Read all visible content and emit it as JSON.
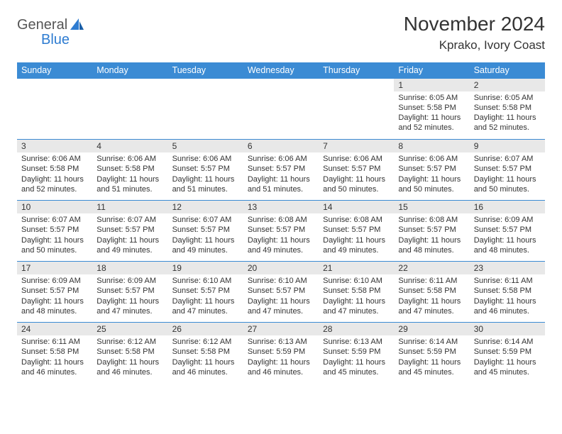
{
  "logo": {
    "line1": "General",
    "line2": "Blue"
  },
  "title": "November 2024",
  "location": "Kprako, Ivory Coast",
  "colors": {
    "header_bg": "#3b8bd4",
    "header_text": "#ffffff",
    "daynum_bg": "#e8e8e8",
    "border": "#3b8bd4",
    "logo_blue": "#2e7cd1",
    "text": "#333333"
  },
  "weekdays": [
    "Sunday",
    "Monday",
    "Tuesday",
    "Wednesday",
    "Thursday",
    "Friday",
    "Saturday"
  ],
  "weeks": [
    [
      {
        "n": "",
        "text": ""
      },
      {
        "n": "",
        "text": ""
      },
      {
        "n": "",
        "text": ""
      },
      {
        "n": "",
        "text": ""
      },
      {
        "n": "",
        "text": ""
      },
      {
        "n": "1",
        "text": "Sunrise: 6:05 AM\nSunset: 5:58 PM\nDaylight: 11 hours and 52 minutes."
      },
      {
        "n": "2",
        "text": "Sunrise: 6:05 AM\nSunset: 5:58 PM\nDaylight: 11 hours and 52 minutes."
      }
    ],
    [
      {
        "n": "3",
        "text": "Sunrise: 6:06 AM\nSunset: 5:58 PM\nDaylight: 11 hours and 52 minutes."
      },
      {
        "n": "4",
        "text": "Sunrise: 6:06 AM\nSunset: 5:58 PM\nDaylight: 11 hours and 51 minutes."
      },
      {
        "n": "5",
        "text": "Sunrise: 6:06 AM\nSunset: 5:57 PM\nDaylight: 11 hours and 51 minutes."
      },
      {
        "n": "6",
        "text": "Sunrise: 6:06 AM\nSunset: 5:57 PM\nDaylight: 11 hours and 51 minutes."
      },
      {
        "n": "7",
        "text": "Sunrise: 6:06 AM\nSunset: 5:57 PM\nDaylight: 11 hours and 50 minutes."
      },
      {
        "n": "8",
        "text": "Sunrise: 6:06 AM\nSunset: 5:57 PM\nDaylight: 11 hours and 50 minutes."
      },
      {
        "n": "9",
        "text": "Sunrise: 6:07 AM\nSunset: 5:57 PM\nDaylight: 11 hours and 50 minutes."
      }
    ],
    [
      {
        "n": "10",
        "text": "Sunrise: 6:07 AM\nSunset: 5:57 PM\nDaylight: 11 hours and 50 minutes."
      },
      {
        "n": "11",
        "text": "Sunrise: 6:07 AM\nSunset: 5:57 PM\nDaylight: 11 hours and 49 minutes."
      },
      {
        "n": "12",
        "text": "Sunrise: 6:07 AM\nSunset: 5:57 PM\nDaylight: 11 hours and 49 minutes."
      },
      {
        "n": "13",
        "text": "Sunrise: 6:08 AM\nSunset: 5:57 PM\nDaylight: 11 hours and 49 minutes."
      },
      {
        "n": "14",
        "text": "Sunrise: 6:08 AM\nSunset: 5:57 PM\nDaylight: 11 hours and 49 minutes."
      },
      {
        "n": "15",
        "text": "Sunrise: 6:08 AM\nSunset: 5:57 PM\nDaylight: 11 hours and 48 minutes."
      },
      {
        "n": "16",
        "text": "Sunrise: 6:09 AM\nSunset: 5:57 PM\nDaylight: 11 hours and 48 minutes."
      }
    ],
    [
      {
        "n": "17",
        "text": "Sunrise: 6:09 AM\nSunset: 5:57 PM\nDaylight: 11 hours and 48 minutes."
      },
      {
        "n": "18",
        "text": "Sunrise: 6:09 AM\nSunset: 5:57 PM\nDaylight: 11 hours and 47 minutes."
      },
      {
        "n": "19",
        "text": "Sunrise: 6:10 AM\nSunset: 5:57 PM\nDaylight: 11 hours and 47 minutes."
      },
      {
        "n": "20",
        "text": "Sunrise: 6:10 AM\nSunset: 5:57 PM\nDaylight: 11 hours and 47 minutes."
      },
      {
        "n": "21",
        "text": "Sunrise: 6:10 AM\nSunset: 5:58 PM\nDaylight: 11 hours and 47 minutes."
      },
      {
        "n": "22",
        "text": "Sunrise: 6:11 AM\nSunset: 5:58 PM\nDaylight: 11 hours and 47 minutes."
      },
      {
        "n": "23",
        "text": "Sunrise: 6:11 AM\nSunset: 5:58 PM\nDaylight: 11 hours and 46 minutes."
      }
    ],
    [
      {
        "n": "24",
        "text": "Sunrise: 6:11 AM\nSunset: 5:58 PM\nDaylight: 11 hours and 46 minutes."
      },
      {
        "n": "25",
        "text": "Sunrise: 6:12 AM\nSunset: 5:58 PM\nDaylight: 11 hours and 46 minutes."
      },
      {
        "n": "26",
        "text": "Sunrise: 6:12 AM\nSunset: 5:58 PM\nDaylight: 11 hours and 46 minutes."
      },
      {
        "n": "27",
        "text": "Sunrise: 6:13 AM\nSunset: 5:59 PM\nDaylight: 11 hours and 46 minutes."
      },
      {
        "n": "28",
        "text": "Sunrise: 6:13 AM\nSunset: 5:59 PM\nDaylight: 11 hours and 45 minutes."
      },
      {
        "n": "29",
        "text": "Sunrise: 6:14 AM\nSunset: 5:59 PM\nDaylight: 11 hours and 45 minutes."
      },
      {
        "n": "30",
        "text": "Sunrise: 6:14 AM\nSunset: 5:59 PM\nDaylight: 11 hours and 45 minutes."
      }
    ]
  ]
}
